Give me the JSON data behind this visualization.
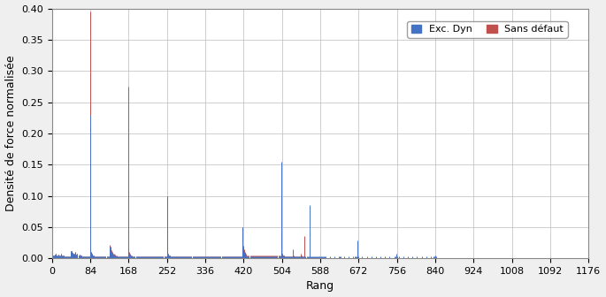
{
  "xlabel": "Rang",
  "ylabel": "Densité de force normalisée",
  "xlim": [
    0,
    1176
  ],
  "ylim": [
    0,
    0.4
  ],
  "xticks": [
    0,
    84,
    168,
    252,
    336,
    420,
    504,
    588,
    672,
    756,
    840,
    924,
    1008,
    1092,
    1176
  ],
  "yticks": [
    0,
    0.05,
    0.1,
    0.15,
    0.2,
    0.25,
    0.3,
    0.35,
    0.4
  ],
  "color_blue": "#4472C4",
  "color_red": "#C0504D",
  "legend_labels": [
    "Exc. Dyn",
    "Sans défaut"
  ],
  "sans_defaut": {
    "ranks": [
      2,
      4,
      6,
      8,
      10,
      12,
      14,
      16,
      18,
      20,
      22,
      24,
      26,
      28,
      30,
      32,
      34,
      36,
      38,
      40,
      42,
      44,
      46,
      48,
      50,
      52,
      54,
      56,
      58,
      60,
      62,
      64,
      66,
      68,
      70,
      72,
      74,
      76,
      78,
      80,
      82,
      84,
      86,
      88,
      90,
      92,
      94,
      96,
      98,
      100,
      102,
      104,
      106,
      108,
      110,
      112,
      114,
      116,
      118,
      120,
      122,
      124,
      126,
      128,
      130,
      132,
      134,
      136,
      138,
      140,
      142,
      144,
      146,
      148,
      150,
      152,
      154,
      156,
      158,
      160,
      162,
      164,
      166,
      168,
      170,
      172,
      174,
      176,
      178,
      180,
      182,
      184,
      186,
      188,
      190,
      192,
      194,
      196,
      198,
      200,
      202,
      204,
      206,
      208,
      210,
      212,
      214,
      216,
      218,
      220,
      222,
      224,
      226,
      228,
      230,
      232,
      234,
      236,
      238,
      240,
      242,
      244,
      246,
      248,
      250,
      252,
      254,
      256,
      258,
      260,
      262,
      264,
      266,
      268,
      270,
      272,
      274,
      276,
      278,
      280,
      282,
      284,
      286,
      288,
      290,
      292,
      294,
      296,
      298,
      300,
      302,
      304,
      306,
      308,
      310,
      312,
      314,
      316,
      318,
      320,
      322,
      324,
      326,
      328,
      330,
      332,
      334,
      336,
      338,
      340,
      342,
      344,
      346,
      348,
      350,
      352,
      354,
      356,
      358,
      360,
      362,
      364,
      366,
      368,
      370,
      372,
      374,
      376,
      378,
      380,
      382,
      384,
      386,
      388,
      390,
      392,
      394,
      396,
      398,
      400,
      402,
      404,
      406,
      408,
      410,
      412,
      414,
      416,
      418,
      420,
      422,
      424,
      426,
      428,
      430,
      432,
      434,
      436,
      438,
      440,
      442,
      444,
      446,
      448,
      450,
      452,
      454,
      456,
      458,
      460,
      462,
      464,
      466,
      468,
      470,
      472,
      474,
      476,
      478,
      480,
      482,
      484,
      486,
      488,
      490,
      492,
      494,
      496,
      498,
      500,
      502,
      504,
      506,
      508,
      510,
      512,
      514,
      516,
      518,
      520,
      522,
      524,
      526,
      528,
      530,
      532,
      534,
      536,
      538,
      540,
      542,
      544,
      546,
      548,
      550,
      552,
      554,
      556,
      558,
      560,
      562,
      564,
      566,
      568,
      570,
      572,
      574,
      576,
      578,
      580,
      582,
      584,
      586,
      588,
      590,
      592,
      594,
      596,
      598,
      600,
      620,
      630,
      640,
      650,
      660,
      670,
      672,
      680,
      690,
      700,
      710,
      720,
      730,
      740,
      750,
      756,
      840,
      924,
      1008,
      1092
    ],
    "values": [
      0.005,
      0.004,
      0.006,
      0.007,
      0.005,
      0.004,
      0.006,
      0.004,
      0.005,
      0.007,
      0.004,
      0.005,
      0.004,
      0.003,
      0.003,
      0.003,
      0.003,
      0.003,
      0.003,
      0.003,
      0.012,
      0.011,
      0.009,
      0.007,
      0.008,
      0.01,
      0.006,
      0.007,
      0.005,
      0.006,
      0.004,
      0.005,
      0.003,
      0.003,
      0.003,
      0.003,
      0.003,
      0.003,
      0.003,
      0.003,
      0.003,
      0.395,
      0.01,
      0.007,
      0.005,
      0.004,
      0.003,
      0.003,
      0.003,
      0.003,
      0.003,
      0.003,
      0.003,
      0.003,
      0.003,
      0.003,
      0.003,
      0.003,
      0.003,
      0.003,
      0.003,
      0.003,
      0.022,
      0.018,
      0.013,
      0.01,
      0.008,
      0.007,
      0.006,
      0.005,
      0.004,
      0.003,
      0.003,
      0.003,
      0.003,
      0.003,
      0.003,
      0.003,
      0.003,
      0.003,
      0.003,
      0.003,
      0.003,
      0.275,
      0.01,
      0.007,
      0.005,
      0.004,
      0.003,
      0.003,
      0.003,
      0.003,
      0.003,
      0.003,
      0.003,
      0.003,
      0.003,
      0.003,
      0.003,
      0.003,
      0.003,
      0.003,
      0.003,
      0.003,
      0.003,
      0.003,
      0.003,
      0.003,
      0.003,
      0.003,
      0.003,
      0.003,
      0.003,
      0.003,
      0.003,
      0.003,
      0.003,
      0.003,
      0.003,
      0.003,
      0.003,
      0.003,
      0.003,
      0.003,
      0.003,
      0.1,
      0.007,
      0.005,
      0.004,
      0.003,
      0.003,
      0.003,
      0.003,
      0.003,
      0.003,
      0.003,
      0.003,
      0.003,
      0.003,
      0.003,
      0.003,
      0.003,
      0.003,
      0.003,
      0.003,
      0.003,
      0.003,
      0.003,
      0.003,
      0.003,
      0.003,
      0.003,
      0.003,
      0.003,
      0.003,
      0.003,
      0.003,
      0.003,
      0.003,
      0.003,
      0.003,
      0.003,
      0.003,
      0.003,
      0.003,
      0.003,
      0.003,
      0.003,
      0.003,
      0.003,
      0.003,
      0.003,
      0.003,
      0.003,
      0.003,
      0.003,
      0.003,
      0.003,
      0.003,
      0.003,
      0.003,
      0.003,
      0.003,
      0.003,
      0.003,
      0.003,
      0.003,
      0.003,
      0.003,
      0.003,
      0.003,
      0.003,
      0.003,
      0.003,
      0.003,
      0.003,
      0.003,
      0.003,
      0.003,
      0.003,
      0.003,
      0.003,
      0.003,
      0.003,
      0.003,
      0.003,
      0.003,
      0.003,
      0.05,
      0.02,
      0.015,
      0.01,
      0.008,
      0.005,
      0.005,
      0.005,
      0.005,
      0.005,
      0.005,
      0.005,
      0.005,
      0.005,
      0.005,
      0.005,
      0.005,
      0.005,
      0.005,
      0.005,
      0.005,
      0.005,
      0.005,
      0.005,
      0.005,
      0.005,
      0.005,
      0.005,
      0.005,
      0.005,
      0.005,
      0.005,
      0.005,
      0.005,
      0.005,
      0.005,
      0.005,
      0.005,
      0.005,
      0.005,
      0.005,
      0.005,
      0.1,
      0.008,
      0.005,
      0.004,
      0.003,
      0.003,
      0.003,
      0.003,
      0.003,
      0.003,
      0.003,
      0.003,
      0.003,
      0.015,
      0.005,
      0.003,
      0.003,
      0.003,
      0.003,
      0.003,
      0.003,
      0.003,
      0.007,
      0.004,
      0.003,
      0.003,
      0.035
    ]
  },
  "exc_dyn": {
    "ranks": [
      2,
      4,
      6,
      8,
      10,
      12,
      14,
      16,
      18,
      20,
      22,
      24,
      26,
      28,
      30,
      32,
      34,
      36,
      38,
      40,
      42,
      44,
      46,
      48,
      50,
      52,
      54,
      56,
      58,
      60,
      62,
      64,
      66,
      68,
      70,
      72,
      74,
      76,
      78,
      80,
      82,
      84,
      86,
      88,
      90,
      92,
      94,
      96,
      98,
      100,
      102,
      104,
      106,
      108,
      110,
      112,
      114,
      116,
      118,
      120,
      122,
      124,
      126,
      128,
      130,
      132,
      134,
      136,
      138,
      140,
      142,
      144,
      146,
      148,
      150,
      152,
      154,
      156,
      158,
      160,
      162,
      164,
      166,
      168,
      170,
      172,
      174,
      176,
      178,
      180,
      182,
      184,
      186,
      188,
      190,
      192,
      194,
      196,
      198,
      200,
      202,
      204,
      206,
      208,
      210,
      212,
      214,
      216,
      218,
      220,
      222,
      224,
      226,
      228,
      230,
      232,
      234,
      236,
      238,
      240,
      242,
      244,
      246,
      248,
      250,
      252,
      254,
      256,
      258,
      260,
      262,
      264,
      266,
      268,
      270,
      272,
      274,
      276,
      278,
      280,
      282,
      284,
      286,
      288,
      290,
      292,
      294,
      296,
      298,
      300,
      302,
      304,
      306,
      308,
      310,
      312,
      314,
      316,
      318,
      320,
      322,
      324,
      326,
      328,
      330,
      332,
      334,
      336,
      338,
      340,
      342,
      344,
      346,
      348,
      350,
      352,
      354,
      356,
      358,
      360,
      362,
      364,
      366,
      368,
      370,
      372,
      374,
      376,
      378,
      380,
      382,
      384,
      386,
      388,
      390,
      392,
      394,
      396,
      398,
      400,
      402,
      404,
      406,
      408,
      410,
      412,
      414,
      416,
      418,
      420,
      422,
      424,
      426,
      428,
      430,
      432,
      434,
      436,
      438,
      440,
      442,
      444,
      446,
      448,
      450,
      452,
      454,
      456,
      458,
      460,
      462,
      464,
      466,
      468,
      470,
      472,
      474,
      476,
      478,
      480,
      482,
      484,
      486,
      488,
      490,
      492,
      494,
      496,
      498,
      500,
      502,
      504,
      506,
      508,
      510,
      512,
      514,
      516,
      518,
      520,
      522,
      524,
      526,
      528,
      530,
      532,
      534,
      536,
      538,
      540,
      542,
      544,
      546,
      548,
      550,
      552,
      554,
      556,
      558,
      560,
      562,
      564,
      566,
      568,
      570,
      572,
      574,
      576,
      578,
      580,
      582,
      584,
      586,
      588,
      590,
      592,
      594,
      596,
      598,
      600,
      610,
      620,
      628,
      630,
      632,
      640,
      650,
      660,
      664,
      666,
      668,
      670,
      672,
      680,
      690,
      700,
      710,
      720,
      730,
      740,
      750,
      752,
      754,
      756,
      760,
      770,
      780,
      790,
      800,
      810,
      820,
      830,
      836,
      838,
      840,
      842,
      850,
      860,
      870,
      880,
      890,
      900,
      910,
      920,
      924,
      930,
      940,
      950,
      960,
      970,
      980,
      990,
      1000,
      1004,
      1006,
      1008,
      1010,
      1020,
      1030,
      1040,
      1050,
      1060,
      1070,
      1080,
      1086,
      1088,
      1090,
      1092,
      1094
    ],
    "values": [
      0.005,
      0.004,
      0.006,
      0.007,
      0.005,
      0.004,
      0.006,
      0.004,
      0.005,
      0.007,
      0.004,
      0.005,
      0.004,
      0.003,
      0.003,
      0.003,
      0.003,
      0.003,
      0.003,
      0.003,
      0.012,
      0.011,
      0.009,
      0.007,
      0.008,
      0.01,
      0.006,
      0.007,
      0.005,
      0.006,
      0.004,
      0.005,
      0.003,
      0.003,
      0.003,
      0.003,
      0.003,
      0.003,
      0.003,
      0.003,
      0.003,
      0.23,
      0.01,
      0.007,
      0.005,
      0.004,
      0.003,
      0.003,
      0.003,
      0.003,
      0.003,
      0.003,
      0.003,
      0.003,
      0.003,
      0.003,
      0.003,
      0.003,
      0.003,
      0.003,
      0.003,
      0.003,
      0.018,
      0.015,
      0.01,
      0.008,
      0.006,
      0.005,
      0.004,
      0.003,
      0.003,
      0.003,
      0.003,
      0.003,
      0.003,
      0.003,
      0.003,
      0.003,
      0.003,
      0.003,
      0.003,
      0.003,
      0.003,
      0.11,
      0.008,
      0.005,
      0.004,
      0.003,
      0.003,
      0.003,
      0.003,
      0.003,
      0.003,
      0.003,
      0.003,
      0.003,
      0.003,
      0.003,
      0.003,
      0.003,
      0.003,
      0.003,
      0.003,
      0.003,
      0.003,
      0.003,
      0.003,
      0.003,
      0.003,
      0.003,
      0.003,
      0.003,
      0.003,
      0.003,
      0.003,
      0.003,
      0.003,
      0.003,
      0.003,
      0.003,
      0.003,
      0.003,
      0.003,
      0.003,
      0.003,
      0.1,
      0.007,
      0.005,
      0.004,
      0.003,
      0.003,
      0.003,
      0.003,
      0.003,
      0.003,
      0.003,
      0.003,
      0.003,
      0.003,
      0.003,
      0.003,
      0.003,
      0.003,
      0.003,
      0.003,
      0.003,
      0.003,
      0.003,
      0.003,
      0.003,
      0.003,
      0.003,
      0.003,
      0.003,
      0.003,
      0.003,
      0.003,
      0.003,
      0.003,
      0.003,
      0.003,
      0.003,
      0.003,
      0.003,
      0.003,
      0.003,
      0.003,
      0.003,
      0.003,
      0.003,
      0.003,
      0.003,
      0.003,
      0.003,
      0.003,
      0.003,
      0.003,
      0.003,
      0.003,
      0.003,
      0.003,
      0.003,
      0.003,
      0.003,
      0.003,
      0.003,
      0.003,
      0.003,
      0.003,
      0.003,
      0.003,
      0.003,
      0.003,
      0.003,
      0.003,
      0.003,
      0.003,
      0.003,
      0.003,
      0.003,
      0.003,
      0.003,
      0.003,
      0.003,
      0.003,
      0.003,
      0.003,
      0.003,
      0.05,
      0.015,
      0.01,
      0.007,
      0.005,
      0.003,
      0.003,
      0.003,
      0.003,
      0.003,
      0.003,
      0.003,
      0.003,
      0.003,
      0.003,
      0.003,
      0.003,
      0.003,
      0.003,
      0.003,
      0.003,
      0.003,
      0.003,
      0.003,
      0.003,
      0.003,
      0.003,
      0.003,
      0.003,
      0.003,
      0.003,
      0.003,
      0.003,
      0.003,
      0.003,
      0.003,
      0.003,
      0.003,
      0.003,
      0.003,
      0.003,
      0.003,
      0.155,
      0.007,
      0.005,
      0.004,
      0.003,
      0.003,
      0.003,
      0.003,
      0.003,
      0.003,
      0.003,
      0.003,
      0.003,
      0.003,
      0.003,
      0.003,
      0.003,
      0.003,
      0.003,
      0.003,
      0.003,
      0.003,
      0.003,
      0.003,
      0.003,
      0.003,
      0.003,
      0.003,
      0.003,
      0.003,
      0.003,
      0.085,
      0.003,
      0.003,
      0.003,
      0.003,
      0.003,
      0.003,
      0.003,
      0.003,
      0.003,
      0.003,
      0.003,
      0.003,
      0.003,
      0.003,
      0.003,
      0.003,
      0.003,
      0.003,
      0.003,
      0.003,
      0.003,
      0.003,
      0.003,
      0.003,
      0.003,
      0.003,
      0.003,
      0.003,
      0.003,
      0.028,
      0.003,
      0.003,
      0.003,
      0.003,
      0.003,
      0.003,
      0.003,
      0.003,
      0.003,
      0.003,
      0.008,
      0.003,
      0.003,
      0.003,
      0.003,
      0.003,
      0.003,
      0.003,
      0.003,
      0.003,
      0.003,
      0.003,
      0.005,
      0.003
    ]
  }
}
